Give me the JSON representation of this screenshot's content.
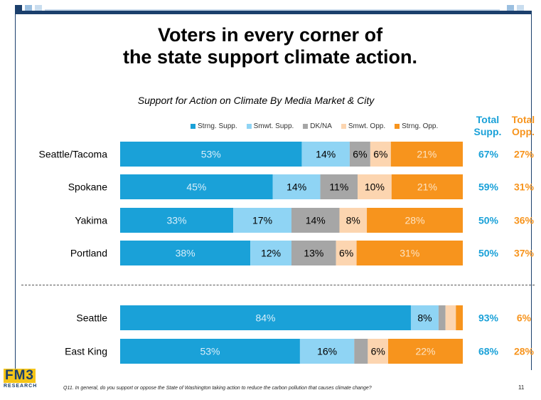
{
  "title_line1": "Voters in every corner of",
  "title_line2": "the state support climate action.",
  "chart_data": {
    "type": "bar",
    "orientation": "horizontal-stacked",
    "title": "Support for Action on Climate By Media Market & City",
    "legend_placement": "top",
    "categories": [
      "Seattle/Tacoma",
      "Spokane",
      "Yakima",
      "Portland",
      "Seattle",
      "East King"
    ],
    "series": [
      {
        "name": "Strng. Supp.",
        "color": "#1aa1d8",
        "values": [
          53,
          45,
          33,
          38,
          84,
          53
        ],
        "labels": [
          "53%",
          "45%",
          "33%",
          "38%",
          "84%",
          "53%"
        ]
      },
      {
        "name": "Smwt. Supp.",
        "color": "#8fd4f4",
        "values": [
          14,
          14,
          17,
          12,
          8,
          16
        ],
        "labels": [
          "14%",
          "14%",
          "17%",
          "12%",
          "8%",
          "16%"
        ]
      },
      {
        "name": "DK/NA",
        "color": "#a6a6a6",
        "values": [
          6,
          11,
          14,
          13,
          2,
          4
        ],
        "labels": [
          "6%",
          "11%",
          "14%",
          "13%",
          "",
          ""
        ]
      },
      {
        "name": "Smwt. Opp.",
        "color": "#fcd5b0",
        "values": [
          6,
          10,
          8,
          6,
          3,
          6
        ],
        "labels": [
          "6%",
          "10%",
          "8%",
          "6%",
          "",
          "6%"
        ]
      },
      {
        "name": "Strng. Opp.",
        "color": "#f7941d",
        "values": [
          21,
          21,
          28,
          31,
          2,
          22
        ],
        "labels": [
          "21%",
          "21%",
          "28%",
          "31%",
          "",
          "22%"
        ]
      }
    ],
    "total_supp": [
      "67%",
      "59%",
      "50%",
      "50%",
      "93%",
      "68%"
    ],
    "total_opp": [
      "27%",
      "31%",
      "36%",
      "37%",
      "6%",
      "28%"
    ]
  },
  "columns": {
    "total_supp_line1": "Total",
    "total_supp_line2": "Supp.",
    "total_opp_line1": "Total",
    "total_opp_line2": "Opp."
  },
  "colors": {
    "supp_total": "#1aa1d8",
    "opp_total": "#f7941d",
    "navy": "#1b3f6c"
  },
  "footer": {
    "logo_main": "FM3",
    "logo_sub": "RESEARCH",
    "question": "Q11. In general, do you support or oppose the State of Washington taking action to reduce the carbon pollution that causes climate change?",
    "page_number": "11"
  }
}
